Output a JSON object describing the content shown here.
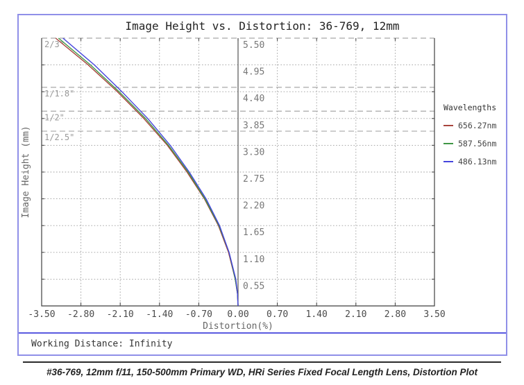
{
  "figure": {
    "title": "Image Height vs. Distortion: 36-769, 12mm",
    "working_distance_label": "Working Distance: Infinity",
    "caption": "#36-769, 12mm f/11, 150-500mm Primary WD, HRi Series Fixed Focal Length Lens, Distortion Plot"
  },
  "legend": {
    "title": "Wavelengths",
    "items": [
      {
        "label": "656.27nm",
        "color": "#a8443c"
      },
      {
        "label": "587.56nm",
        "color": "#3f9644"
      },
      {
        "label": "486.13nm",
        "color": "#4444dd"
      }
    ]
  },
  "colors": {
    "frame_border": "#8f8fe8",
    "panel_divider": "#5a5ae0",
    "plot_border": "#3f3f3f",
    "gridline": "#9c9c9c",
    "sensor_line": "#a8a8a8",
    "sensor_label": "#999999",
    "x_tick_label": "#4a4a4a",
    "y_tick_label": "#777777",
    "axis_label": "#666666"
  },
  "chart_data": {
    "type": "line",
    "title": "Image Height vs. Distortion: 36-769, 12mm",
    "xlabel": "Distortion(%)",
    "ylabel": "Image Height (mm)",
    "xlim": [
      -3.5,
      3.5
    ],
    "ylim": [
      0,
      5.5
    ],
    "x_ticks": [
      -3.5,
      -2.8,
      -2.1,
      -1.4,
      -0.7,
      0.0,
      0.7,
      1.4,
      2.1,
      2.8,
      3.5
    ],
    "y_ticks": [
      0.55,
      1.1,
      1.65,
      2.2,
      2.75,
      3.3,
      3.85,
      4.4,
      4.95,
      5.5
    ],
    "grid": true,
    "legend_position": "right-outside",
    "sensor_format_lines": [
      {
        "label": "2/3\"",
        "image_height_mm": 5.5
      },
      {
        "label": "1/1.8\"",
        "image_height_mm": 4.49
      },
      {
        "label": "1/2\"",
        "image_height_mm": 4.0
      },
      {
        "label": "1/2.5\"",
        "image_height_mm": 3.59
      }
    ],
    "series": [
      {
        "name": "656.27nm",
        "color": "#a8443c",
        "image_height_mm": [
          0.0,
          0.25,
          0.55,
          1.1,
          1.65,
          2.2,
          2.75,
          3.3,
          3.85,
          4.4,
          4.95,
          5.5
        ],
        "distortion_percent": [
          0.0,
          -0.01,
          -0.05,
          -0.17,
          -0.35,
          -0.6,
          -0.91,
          -1.26,
          -1.68,
          -2.15,
          -2.67,
          -3.25
        ]
      },
      {
        "name": "587.56nm",
        "color": "#3f9644",
        "image_height_mm": [
          0.0,
          0.25,
          0.55,
          1.1,
          1.65,
          2.2,
          2.75,
          3.3,
          3.85,
          4.4,
          4.95,
          5.5
        ],
        "distortion_percent": [
          0.0,
          -0.01,
          -0.05,
          -0.16,
          -0.34,
          -0.59,
          -0.89,
          -1.24,
          -1.65,
          -2.12,
          -2.63,
          -3.2
        ]
      },
      {
        "name": "486.13nm",
        "color": "#4444dd",
        "image_height_mm": [
          0.0,
          0.25,
          0.55,
          1.1,
          1.65,
          2.2,
          2.75,
          3.3,
          3.85,
          4.4,
          4.95,
          5.5
        ],
        "distortion_percent": [
          0.0,
          -0.01,
          -0.04,
          -0.16,
          -0.33,
          -0.57,
          -0.87,
          -1.21,
          -1.61,
          -2.07,
          -2.56,
          -3.12
        ]
      }
    ],
    "footer": "Working Distance: Infinity",
    "caption": "#36-769, 12mm f/11, 150-500mm Primary WD, HRi Series Fixed Focal Length Lens, Distortion Plot"
  }
}
